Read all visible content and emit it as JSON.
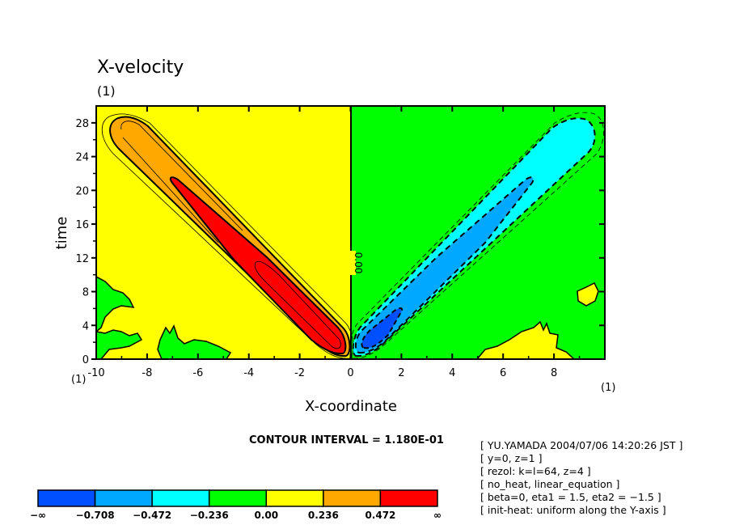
{
  "chart_data": {
    "type": "contour",
    "title": "X-velocity",
    "title_unit": "(1)",
    "xlabel": "X-coordinate",
    "ylabel": "time",
    "x_unit": "(1)",
    "y_unit": "(1)",
    "xlim": [
      -10,
      10
    ],
    "ylim": [
      0,
      30
    ],
    "x_ticks": [
      -10,
      -8,
      -6,
      -4,
      -2,
      0,
      2,
      4,
      6,
      8
    ],
    "y_ticks": [
      0,
      4,
      8,
      12,
      16,
      20,
      24,
      28
    ],
    "contour_label": "0.00",
    "contour_interval_text": "CONTOUR INTERVAL = 1.180E-01",
    "features": [
      {
        "name": "positive-lobe",
        "from": [
          -0.5,
          0.5
        ],
        "to": [
          -9,
          28
        ],
        "max_level": "> 0.472"
      },
      {
        "name": "negative-lobe",
        "from": [
          0.5,
          0.5
        ],
        "to": [
          9,
          28
        ],
        "min_level": "< -0.708"
      }
    ],
    "colorbar": {
      "labels": [
        "−∞",
        "−0.708",
        "−0.472",
        "−0.236",
        "0.00",
        "0.236",
        "0.472",
        "∞"
      ],
      "colors": [
        "#0050ff",
        "#00a8ff",
        "#00ffff",
        "#00ff00",
        "#ffff00",
        "#ffa800",
        "#ff0000"
      ]
    }
  },
  "info": [
    "[ YU.YAMADA 2004/07/06 14:20:26 JST ]",
    "[ y=0, z=1 ]",
    "[ rezol: k=l=64, z=4 ]",
    "[ no_heat, linear_equation ]",
    "[ beta=0, eta1 = 1.5, eta2 = −1.5 ]",
    "[ init-heat: uniform along the Y-axis ]"
  ]
}
